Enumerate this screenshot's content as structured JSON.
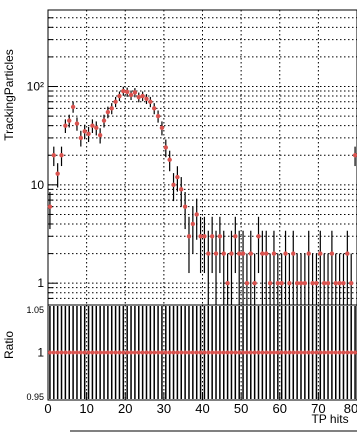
{
  "chart_data": [
    {
      "type": "scatter",
      "ylabel": "TrackingParticles",
      "xlim": [
        0,
        80
      ],
      "ylim": [
        0.6,
        600
      ],
      "yscale": "log",
      "grid": true,
      "y_tick_labels": [
        "1",
        "10",
        "10²"
      ],
      "series": [
        {
          "color": "#d9534f",
          "x": [
            0,
            1,
            2,
            3,
            4,
            5,
            6,
            7,
            8,
            9,
            10,
            11,
            12,
            13,
            14,
            15,
            16,
            17,
            18,
            19,
            20,
            21,
            22,
            23,
            24,
            25,
            26,
            27,
            28,
            29,
            30,
            31,
            32,
            33,
            34,
            35,
            36,
            37,
            38,
            39,
            40,
            41,
            42,
            43,
            44,
            45,
            46,
            47,
            48,
            49,
            50,
            51,
            52,
            53,
            54,
            55,
            56,
            57,
            58,
            59,
            60,
            61,
            62,
            63,
            64,
            65,
            66,
            67,
            68,
            69,
            70,
            71,
            72,
            73,
            74,
            75,
            76,
            77,
            78,
            79
          ],
          "values": [
            6,
            20,
            13,
            20,
            40,
            45,
            62,
            42,
            30,
            35,
            33,
            40,
            38,
            32,
            45,
            55,
            60,
            70,
            80,
            90,
            88,
            82,
            87,
            78,
            80,
            75,
            70,
            60,
            50,
            38,
            24,
            18,
            10,
            12,
            9,
            6,
            3,
            4,
            5,
            3,
            3,
            2,
            3,
            2,
            3,
            2,
            1,
            2,
            3,
            2,
            2,
            1,
            2,
            1,
            3,
            2,
            2,
            1,
            2,
            1,
            1,
            2,
            1,
            2,
            1,
            1,
            1,
            2,
            1,
            1,
            2,
            1,
            1,
            2,
            1,
            1,
            1,
            2,
            1,
            20
          ]
        }
      ]
    },
    {
      "type": "scatter",
      "ylabel": "Ratio",
      "xlabel": "TP hits",
      "xlim": [
        0,
        80
      ],
      "ylim": [
        0.95,
        1.05
      ],
      "grid": true,
      "x_tick_labels": [
        "0",
        "10",
        "20",
        "30",
        "40",
        "50",
        "60",
        "70",
        "80"
      ],
      "y_tick_labels": [
        "0.95",
        "1",
        "1.05"
      ],
      "series": [
        {
          "color": "#d9534f",
          "x": [
            0,
            1,
            2,
            3,
            4,
            5,
            6,
            7,
            8,
            9,
            10,
            11,
            12,
            13,
            14,
            15,
            16,
            17,
            18,
            19,
            20,
            21,
            22,
            23,
            24,
            25,
            26,
            27,
            28,
            29,
            30,
            31,
            32,
            33,
            34,
            35,
            36,
            37,
            38,
            39,
            40,
            41,
            42,
            43,
            44,
            45,
            46,
            47,
            48,
            49,
            50,
            51,
            52,
            53,
            54,
            55,
            56,
            57,
            58,
            59,
            60,
            61,
            62,
            63,
            64,
            65,
            66,
            67,
            68,
            69,
            70,
            71,
            72,
            73,
            74,
            75,
            76,
            77,
            78,
            79
          ],
          "values": [
            1,
            1,
            1,
            1,
            1,
            1,
            1,
            1,
            1,
            1,
            1,
            1,
            1,
            1,
            1,
            1,
            1,
            1,
            1,
            1,
            1,
            1,
            1,
            1,
            1,
            1,
            1,
            1,
            1,
            1,
            1,
            1,
            1,
            1,
            1,
            1,
            1,
            1,
            1,
            1,
            1,
            1,
            1,
            1,
            1,
            1,
            1,
            1,
            1,
            1,
            1,
            1,
            1,
            1,
            1,
            1,
            1,
            1,
            1,
            1,
            1,
            1,
            1,
            1,
            1,
            1,
            1,
            1,
            1,
            1,
            1,
            1,
            1,
            1,
            1,
            1,
            1,
            1,
            1,
            1
          ]
        }
      ]
    }
  ]
}
